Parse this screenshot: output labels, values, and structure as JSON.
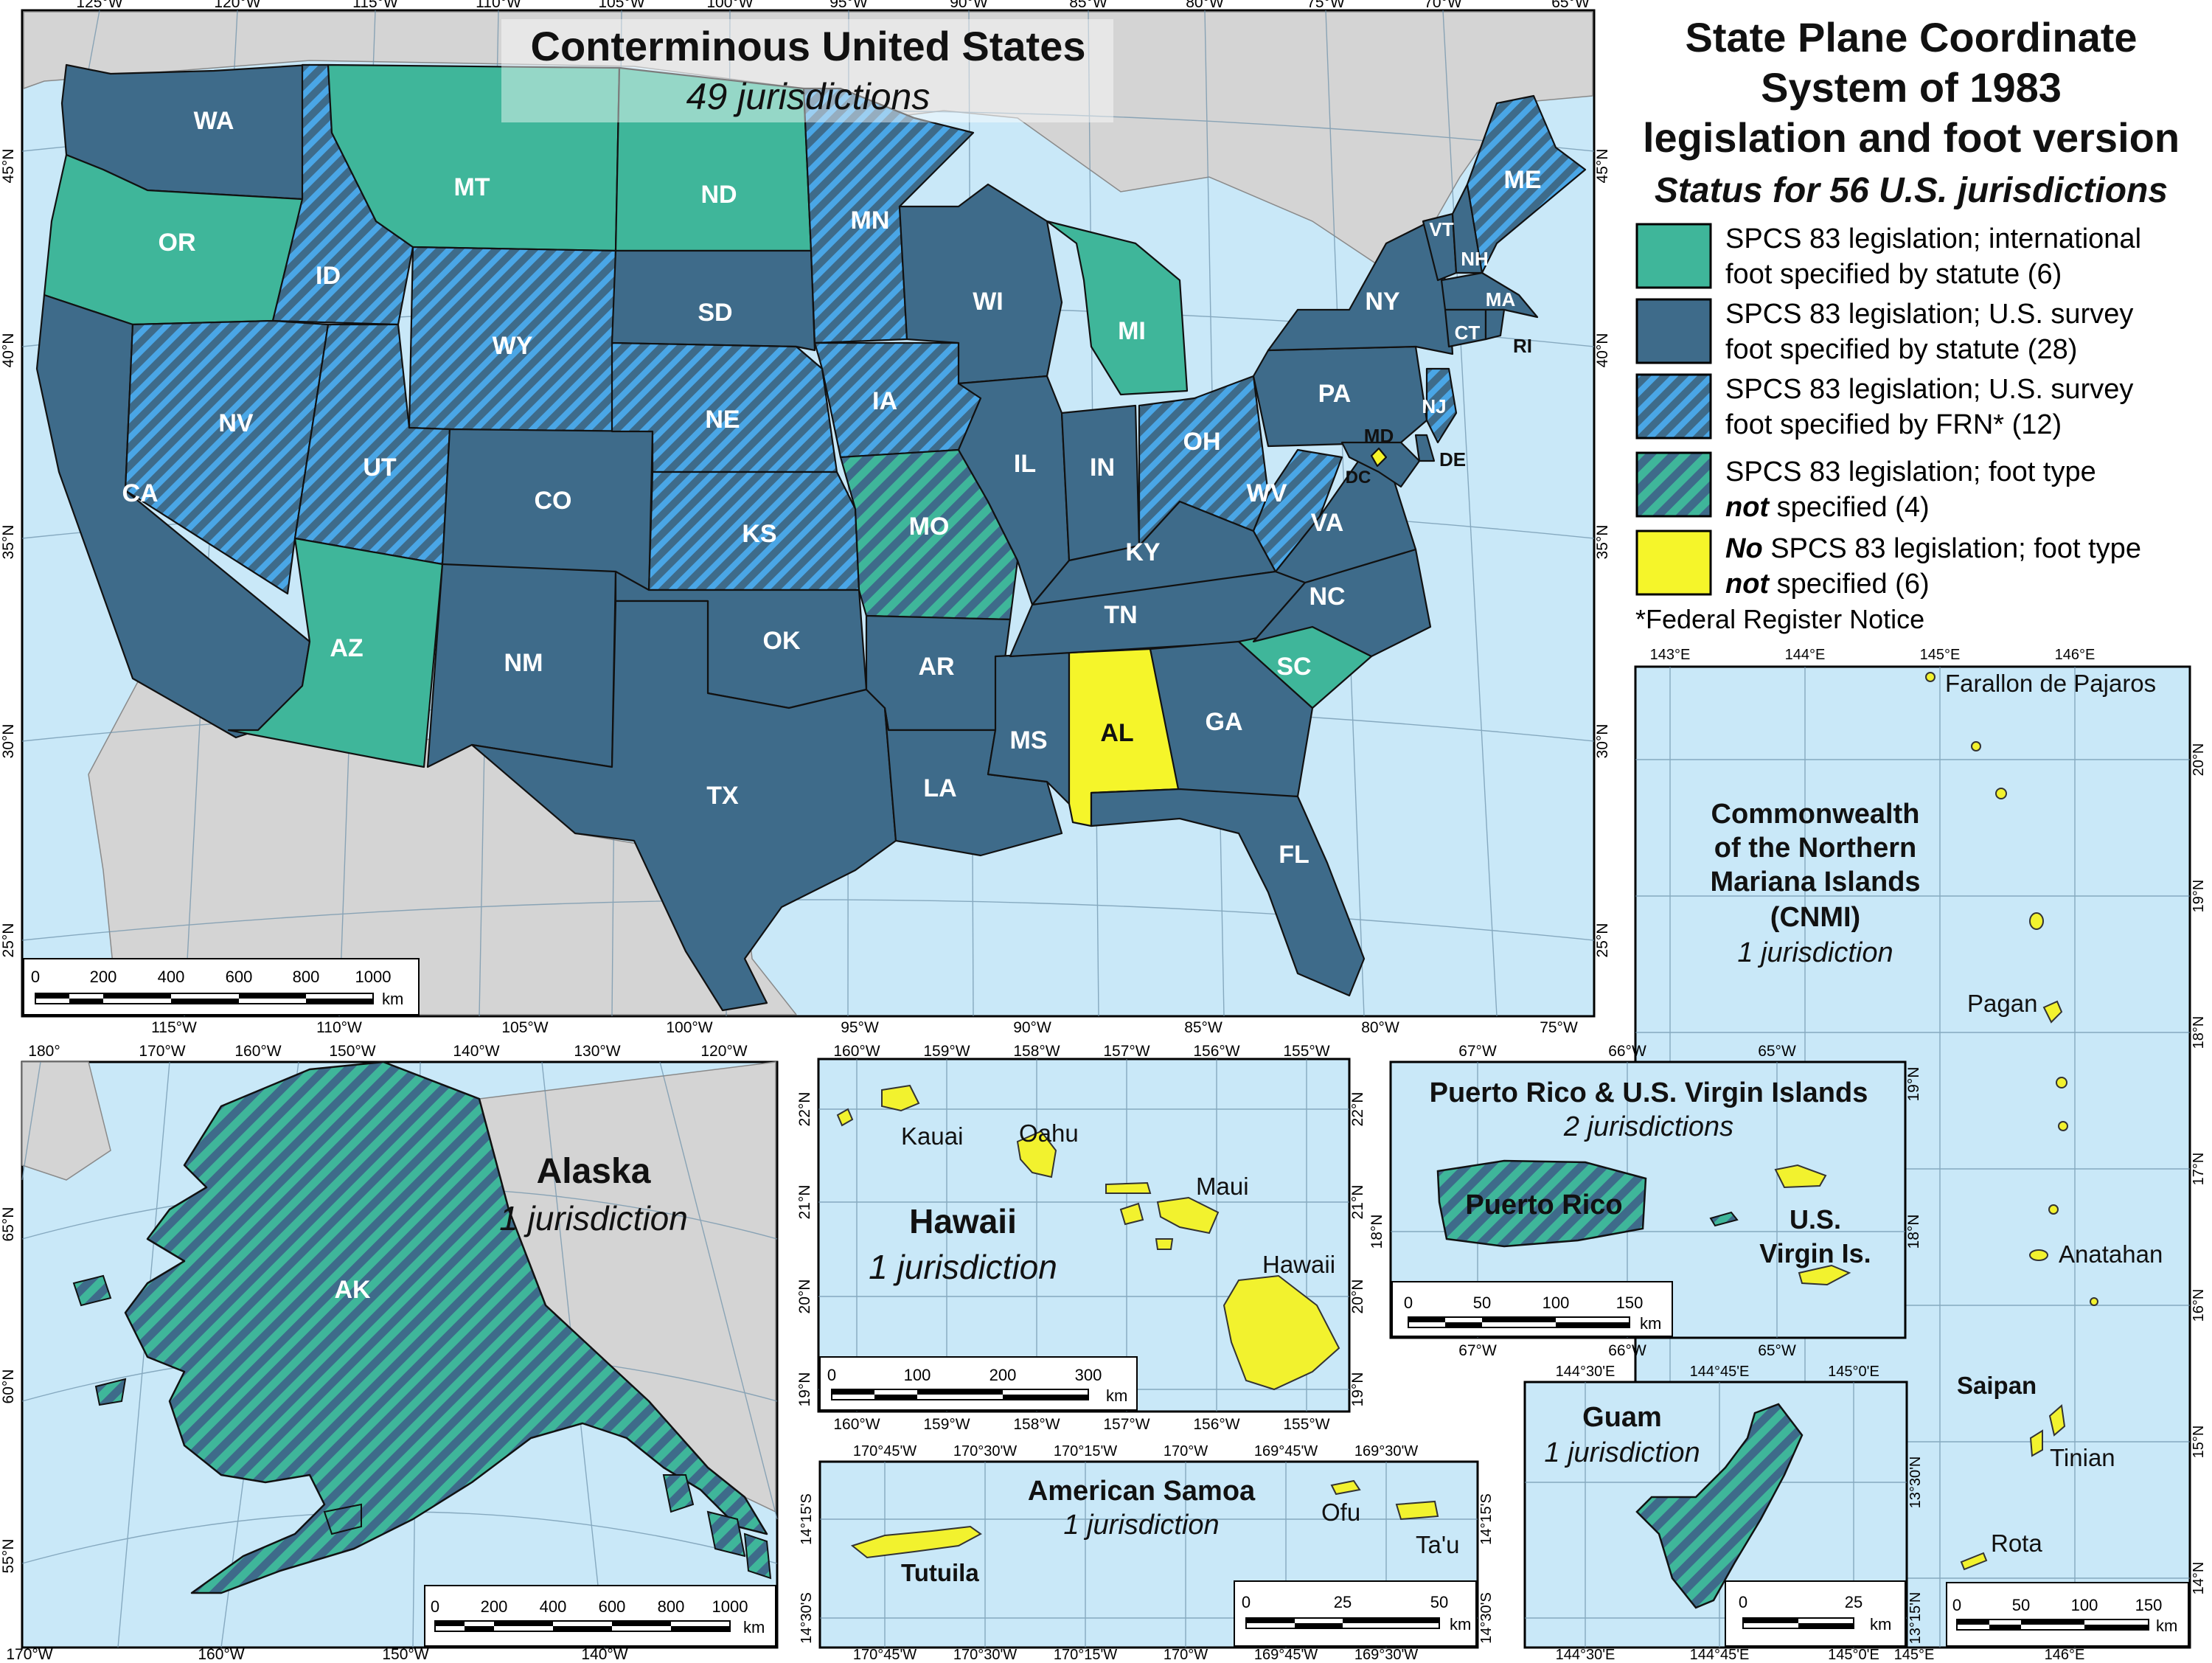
{
  "title_lines": [
    "State Plane Coordinate",
    "System of 1983",
    "legislation and foot version"
  ],
  "subtitle": "Status for 56 U.S. jurisdictions",
  "colors": {
    "intl_foot": "#3fb69a",
    "survey_statute": "#3e6b8a",
    "survey_frn_a": "#3e6b8a",
    "survey_frn_b": "#4aa6e6",
    "not_specified_a": "#3e6b8a",
    "not_specified_b": "#3fb69a",
    "no_legislation": "#f5f52a",
    "water": "#c9e8f8",
    "land": "#d4d4d4"
  },
  "legend": [
    {
      "line1": "SPCS 83 legislation; international",
      "line2": "foot specified by statute (6)",
      "swatch": "intl"
    },
    {
      "line1": "SPCS 83 legislation; U.S. survey",
      "line2": "foot specified by statute (28)",
      "swatch": "statute"
    },
    {
      "line1": "SPCS 83 legislation; U.S. survey",
      "line2": "foot specified by FRN* (12)",
      "swatch": "frn"
    },
    {
      "line1": "SPCS 83 legislation; foot type",
      "line2b": "not",
      "line2": " specified (4)",
      "swatch": "notspec"
    },
    {
      "line1b": "No",
      "line1": " SPCS 83 legislation; foot type",
      "line2b": "not",
      "line2": " specified (6)",
      "swatch": "none"
    }
  ],
  "footnote": "*Federal Register Notice",
  "conus": {
    "title": "Conterminous United States",
    "subtitle": "49 jurisdictions",
    "top_ticks": [
      "125°W",
      "120°W",
      "115°W",
      "110°W",
      "105°W",
      "100°W",
      "95°W",
      "90°W",
      "85°W",
      "80°W",
      "75°W",
      "70°W",
      "65°W"
    ],
    "bottom_ticks": [
      "115°W",
      "110°W",
      "105°W",
      "100°W",
      "95°W",
      "90°W",
      "85°W",
      "80°W",
      "75°W"
    ],
    "left_ticks": [
      "45°N",
      "40°N",
      "35°N",
      "30°N",
      "25°N"
    ],
    "right_ticks": [
      "45°N",
      "40°N",
      "35°N",
      "30°N",
      "25°N"
    ],
    "scale": {
      "labels": [
        "0",
        "200",
        "400",
        "600",
        "800",
        "1000"
      ],
      "unit": "km"
    },
    "states": [
      "WA",
      "OR",
      "CA",
      "ID",
      "NV",
      "MT",
      "WY",
      "UT",
      "AZ",
      "CO",
      "NM",
      "ND",
      "SD",
      "NE",
      "KS",
      "OK",
      "TX",
      "MN",
      "IA",
      "MO",
      "AR",
      "LA",
      "WI",
      "IL",
      "MS",
      "AL",
      "MI",
      "IN",
      "KY",
      "TN",
      "OH",
      "GA",
      "FL",
      "SC",
      "NC",
      "VA",
      "WV",
      "PA",
      "NY",
      "VT",
      "NH",
      "ME",
      "MA",
      "CT",
      "RI",
      "NJ",
      "DE",
      "MD",
      "DC"
    ]
  },
  "alaska": {
    "title": "Alaska",
    "subtitle": "1 jurisdiction",
    "label": "AK",
    "top_ticks": [
      "180°",
      "170°W",
      "160°W",
      "150°W",
      "140°W",
      "130°W",
      "120°W"
    ],
    "bottom_ticks": [
      "170°W",
      "160°W",
      "150°W",
      "140°W"
    ],
    "left_ticks": [
      "65°N",
      "60°N",
      "55°N"
    ],
    "scale": {
      "labels": [
        "0",
        "200",
        "400",
        "600",
        "800",
        "1000"
      ],
      "unit": "km"
    }
  },
  "hawaii": {
    "title": "Hawaii",
    "subtitle": "1 jurisdiction",
    "islands": [
      "Kauai",
      "Oahu",
      "Maui",
      "Hawaii"
    ],
    "top_ticks": [
      "160°W",
      "159°W",
      "158°W",
      "157°W",
      "156°W",
      "155°W"
    ],
    "bottom_ticks": [
      "160°W",
      "159°W",
      "158°W",
      "157°W",
      "156°W",
      "155°W"
    ],
    "left_ticks": [
      "22°N",
      "21°N",
      "20°N",
      "19°N"
    ],
    "right_ticks": [
      "22°N",
      "21°N",
      "20°N",
      "19°N"
    ],
    "scale": {
      "labels": [
        "0",
        "100",
        "200",
        "300"
      ],
      "unit": "km"
    }
  },
  "puerto_rico": {
    "title": "Puerto Rico & U.S. Virgin Islands",
    "subtitle": "2 jurisdictions",
    "pr_label": "Puerto Rico",
    "vi_label1": "U.S.",
    "vi_label2": "Virgin Is.",
    "top_ticks": [
      "67°W",
      "66°W",
      "65°W"
    ],
    "bottom_ticks": [
      "67°W",
      "66°W",
      "65°W"
    ],
    "left_ticks": [
      "18°N"
    ],
    "right_ticks": [
      "19°N",
      "18°N"
    ],
    "scale": {
      "labels": [
        "0",
        "50",
        "100",
        "150"
      ],
      "unit": "km"
    }
  },
  "samoa": {
    "title": "American Samoa",
    "subtitle": "1 jurisdiction",
    "islands": [
      "Tutuila",
      "Ofu",
      "Ta'u"
    ],
    "top_ticks": [
      "170°45'W",
      "170°30'W",
      "170°15'W",
      "170°W",
      "169°45'W",
      "169°30'W"
    ],
    "bottom_ticks": [
      "170°45'W",
      "170°30'W",
      "170°15'W",
      "170°W",
      "169°45'W",
      "169°30'W"
    ],
    "left_ticks": [
      "14°15'S",
      "14°30'S"
    ],
    "right_ticks": [
      "14°15'S",
      "14°30'S"
    ],
    "scale": {
      "labels": [
        "0",
        "25",
        "50"
      ],
      "unit": "km"
    }
  },
  "guam": {
    "title": "Guam",
    "subtitle": "1 jurisdiction",
    "top_ticks": [
      "144°30'E",
      "144°45'E",
      "145°0'E"
    ],
    "bottom_ticks": [
      "144°30'E",
      "144°45'E",
      "145°0'E"
    ],
    "right_ticks": [
      "13°30'N",
      "13°15'N"
    ],
    "scale": {
      "labels": [
        "0",
        "25"
      ],
      "unit": "km"
    }
  },
  "cnmi": {
    "title_lines": [
      "Commonwealth",
      "of the Northern",
      "Mariana Islands",
      "(CNMI)"
    ],
    "subtitle": "1 jurisdiction",
    "islands": [
      "Farallon de Pajaros",
      "Pagan",
      "Anatahan",
      "Saipan",
      "Tinian",
      "Rota"
    ],
    "top_ticks": [
      "143°E",
      "144°E",
      "145°E",
      "146°E"
    ],
    "bottom_ticks": [
      "145°E",
      "146°E"
    ],
    "right_ticks": [
      "20°N",
      "19°N",
      "18°N",
      "17°N",
      "16°N",
      "15°N",
      "14°N"
    ],
    "scale": {
      "labels": [
        "0",
        "50",
        "100",
        "150"
      ],
      "unit": "km"
    }
  }
}
